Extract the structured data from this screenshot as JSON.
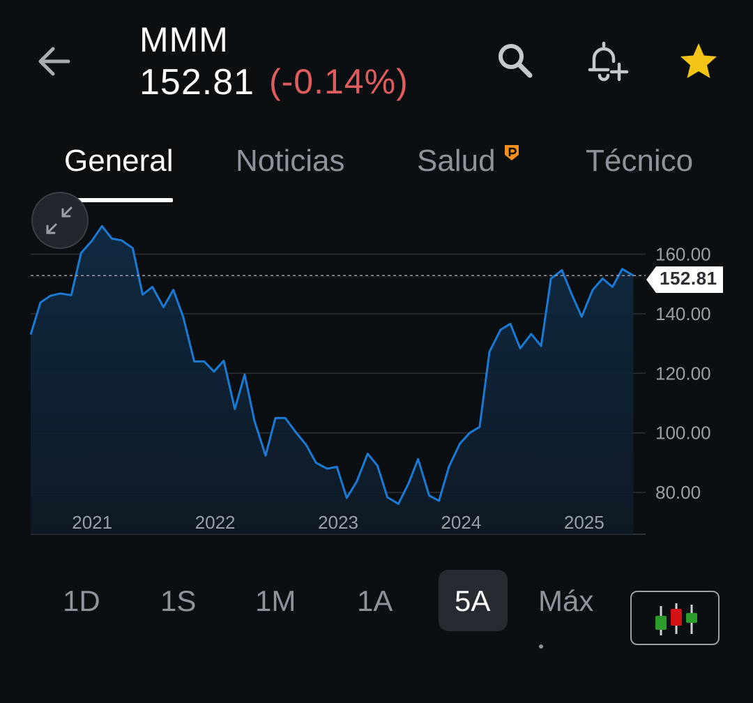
{
  "header": {
    "ticker": "MMM",
    "price": "152.81",
    "change": "(-0.14%)",
    "change_color": "#e05d5d",
    "back_icon": "arrow-left",
    "search_icon": "magnifier",
    "alert_icon": "bell-plus",
    "favorite_icon": "star",
    "favorite_color": "#f3c316"
  },
  "tabs": [
    {
      "label": "General",
      "active": true
    },
    {
      "label": "Noticias",
      "active": false
    },
    {
      "label": "Salud",
      "active": false,
      "badge": "P",
      "badge_color": "#f5901e"
    },
    {
      "label": "Técnico",
      "active": false
    }
  ],
  "chart_data": {
    "type": "area",
    "line_color": "#1a7ad4",
    "current_price": 152.81,
    "current_price_label": "152.81",
    "y_ticks": [
      "160.00",
      "140.00",
      "120.00",
      "100.00",
      "80.00"
    ],
    "y_tick_values": [
      160,
      140,
      120,
      100,
      80
    ],
    "x_ticks": [
      "2021",
      "2022",
      "2023",
      "2024",
      "2025"
    ],
    "ylim": [
      66,
      176
    ],
    "xlim": [
      2020.5,
      2025.5
    ],
    "grid": true,
    "points": [
      [
        2020.5,
        133.0
      ],
      [
        2020.58,
        143.8
      ],
      [
        2020.66,
        146.0
      ],
      [
        2020.74,
        146.8
      ],
      [
        2020.83,
        146.2
      ],
      [
        2020.91,
        160.4
      ],
      [
        2021.0,
        164.6
      ],
      [
        2021.08,
        169.4
      ],
      [
        2021.16,
        165.2
      ],
      [
        2021.24,
        164.6
      ],
      [
        2021.33,
        162.0
      ],
      [
        2021.41,
        146.4
      ],
      [
        2021.49,
        149.0
      ],
      [
        2021.58,
        142.2
      ],
      [
        2021.66,
        148.0
      ],
      [
        2021.74,
        139.0
      ],
      [
        2021.83,
        124.0
      ],
      [
        2021.91,
        124.0
      ],
      [
        2021.99,
        120.6
      ],
      [
        2022.07,
        124.2
      ],
      [
        2022.16,
        108.0
      ],
      [
        2022.24,
        119.6
      ],
      [
        2022.32,
        104.0
      ],
      [
        2022.41,
        92.4
      ],
      [
        2022.49,
        105.0
      ],
      [
        2022.57,
        105.0
      ],
      [
        2022.66,
        100.0
      ],
      [
        2022.74,
        96.0
      ],
      [
        2022.82,
        90.0
      ],
      [
        2022.91,
        88.0
      ],
      [
        2022.99,
        88.6
      ],
      [
        2023.07,
        78.2
      ],
      [
        2023.15,
        83.6
      ],
      [
        2023.24,
        93.0
      ],
      [
        2023.32,
        89.0
      ],
      [
        2023.4,
        78.4
      ],
      [
        2023.49,
        76.2
      ],
      [
        2023.57,
        82.8
      ],
      [
        2023.65,
        91.2
      ],
      [
        2023.74,
        79.0
      ],
      [
        2023.82,
        77.2
      ],
      [
        2023.9,
        88.6
      ],
      [
        2023.99,
        96.4
      ],
      [
        2024.07,
        100.0
      ],
      [
        2024.15,
        102.0
      ],
      [
        2024.23,
        127.2
      ],
      [
        2024.32,
        134.6
      ],
      [
        2024.4,
        136.6
      ],
      [
        2024.48,
        128.4
      ],
      [
        2024.57,
        133.2
      ],
      [
        2024.65,
        129.2
      ],
      [
        2024.73,
        151.8
      ],
      [
        2024.82,
        154.6
      ],
      [
        2024.9,
        146.4
      ],
      [
        2024.98,
        139.0
      ],
      [
        2025.07,
        148.0
      ],
      [
        2025.15,
        151.8
      ],
      [
        2025.23,
        149.0
      ],
      [
        2025.31,
        155.0
      ],
      [
        2025.4,
        152.8
      ]
    ]
  },
  "ranges": [
    {
      "label": "1D",
      "active": false
    },
    {
      "label": "1S",
      "active": false
    },
    {
      "label": "1M",
      "active": false
    },
    {
      "label": "1A",
      "active": false
    },
    {
      "label": "5A",
      "active": true
    },
    {
      "label": "Máx",
      "active": false
    }
  ],
  "chart_type_icon": "candlestick-icon",
  "candle_colors": {
    "up": "#2b9c2b",
    "down": "#d41414"
  }
}
